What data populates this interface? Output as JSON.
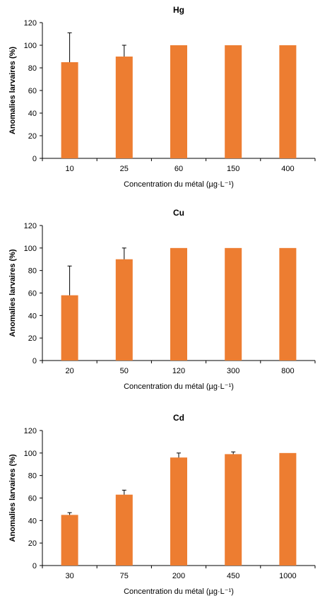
{
  "chart_data": [
    {
      "type": "bar",
      "title": "Hg",
      "xlabel": "Concentration du métal (µg·L⁻¹)",
      "ylabel": "Anomalies larvaires (%)",
      "categories": [
        "10",
        "25",
        "60",
        "150",
        "400"
      ],
      "values": [
        85,
        90,
        100,
        100,
        100
      ],
      "error_upper": [
        26,
        10,
        0,
        0,
        0
      ],
      "ylim": [
        0,
        120
      ],
      "yticks": [
        0,
        20,
        40,
        60,
        80,
        100,
        120
      ],
      "grid": false,
      "color": "#ed7d31"
    },
    {
      "type": "bar",
      "title": "Cu",
      "xlabel": "Concentration du métal (µg·L⁻¹)",
      "ylabel": "Anomalies larvaires (%)",
      "categories": [
        "20",
        "50",
        "120",
        "300",
        "800"
      ],
      "values": [
        58,
        90,
        100,
        100,
        100
      ],
      "error_upper": [
        26,
        10,
        0,
        0,
        0
      ],
      "ylim": [
        0,
        120
      ],
      "yticks": [
        0,
        20,
        40,
        60,
        80,
        100,
        120
      ],
      "grid": false,
      "color": "#ed7d31"
    },
    {
      "type": "bar",
      "title": "Cd",
      "xlabel": "Concentration du métal (µg·L⁻¹)",
      "ylabel": "Anomalies larvaires (%)",
      "categories": [
        "30",
        "75",
        "200",
        "450",
        "1000"
      ],
      "values": [
        45,
        63,
        96,
        99,
        100
      ],
      "error_upper": [
        2,
        4,
        4,
        2,
        0
      ],
      "ylim": [
        0,
        120
      ],
      "yticks": [
        0,
        20,
        40,
        60,
        80,
        100,
        120
      ],
      "grid": false,
      "color": "#ed7d31"
    }
  ]
}
